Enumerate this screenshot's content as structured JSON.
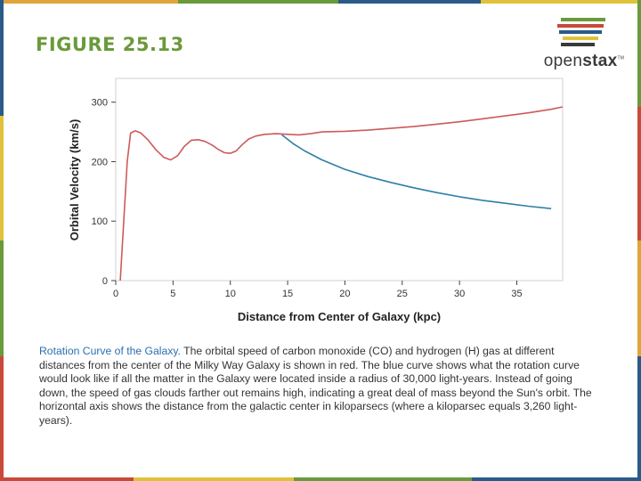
{
  "figure_label": "FIGURE 25.13",
  "logo": {
    "text_regular": "open",
    "text_bold": "stax",
    "tm": "TM"
  },
  "caption": {
    "lead": "Rotation Curve of the Galaxy.",
    "body": " The orbital speed of carbon monoxide (CO) and hydrogen (H) gas at different distances from the center of the Milky Way Galaxy is shown in red. The blue curve shows what the rotation curve would look like if all the matter in the Galaxy were located inside a radius of 30,000 light-years. Instead of going down, the speed of gas clouds farther out remains high, indicating a great deal of mass beyond the Sun's orbit. The horizontal axis shows the distance from the galactic center in kiloparsecs (where a kiloparsec equals 3,260 light-years)."
  },
  "colors": {
    "red_curve": "#cc5a5a",
    "blue_curve": "#2f7fa6",
    "title_green": "#6a9a3a",
    "caption_blue": "#2a6fb0"
  },
  "chart_data": {
    "type": "line",
    "xlabel": "Distance from Center of Galaxy (kpc)",
    "ylabel": "Orbital Velocity (km/s)",
    "xlim": [
      0,
      39
    ],
    "ylim": [
      0,
      340
    ],
    "xticks": [
      0,
      5,
      10,
      15,
      20,
      25,
      30,
      35
    ],
    "yticks": [
      0,
      100,
      200,
      300
    ],
    "grid": false,
    "series": [
      {
        "color": "#cc5a5a",
        "x": [
          0.4,
          1.0,
          1.3,
          1.7,
          2.2,
          2.8,
          3.5,
          4.2,
          4.8,
          5.4,
          6.0,
          6.6,
          7.2,
          7.8,
          8.4,
          9.0,
          9.5,
          10.0,
          10.5,
          11.0,
          11.6,
          12.2,
          13.0,
          14.0,
          15.0,
          16.0,
          17.0,
          18.0,
          20.0,
          22.0,
          24.0,
          26.0,
          28.0,
          30.0,
          32.0,
          34.0,
          36.0,
          38.0,
          39.0
        ],
        "y": [
          0,
          200,
          248,
          252,
          248,
          237,
          220,
          207,
          203,
          210,
          226,
          236,
          237,
          234,
          228,
          220,
          215,
          214,
          218,
          228,
          238,
          243,
          246,
          247,
          246,
          245,
          247,
          250,
          251,
          253,
          256,
          259,
          263,
          267,
          272,
          277,
          282,
          288,
          292
        ]
      },
      {
        "color": "#2f7fa6",
        "x": [
          14.5,
          15.5,
          16.5,
          18.0,
          20.0,
          22.0,
          24.0,
          26.0,
          28.0,
          30.0,
          32.0,
          34.0,
          36.0,
          38.0
        ],
        "y": [
          245,
          230,
          218,
          203,
          187,
          175,
          165,
          156,
          148,
          141,
          135,
          130,
          125,
          121
        ]
      }
    ]
  }
}
